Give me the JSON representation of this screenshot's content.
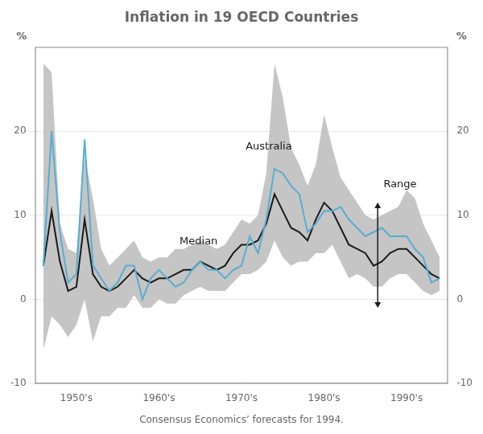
{
  "chart_data": {
    "type": "line",
    "title": "Inflation in 19 OECD Countries",
    "subtitle": "Consensus Economics’ forecasts for 1994.",
    "x": [
      1946,
      1947,
      1948,
      1949,
      1950,
      1951,
      1952,
      1953,
      1954,
      1955,
      1956,
      1957,
      1958,
      1959,
      1960,
      1961,
      1962,
      1963,
      1964,
      1965,
      1966,
      1967,
      1968,
      1969,
      1970,
      1971,
      1972,
      1973,
      1974,
      1975,
      1976,
      1977,
      1978,
      1979,
      1980,
      1981,
      1982,
      1983,
      1984,
      1985,
      1986,
      1987,
      1988,
      1989,
      1990,
      1991,
      1992,
      1993,
      1994
    ],
    "series": [
      {
        "name": "Range",
        "type": "range",
        "color": "#c5c5c5",
        "lower": [
          -6.0,
          -2.0,
          -3.0,
          -4.5,
          -3.0,
          0.0,
          -5.0,
          -2.0,
          -2.0,
          -1.0,
          -1.0,
          0.5,
          -1.0,
          -1.0,
          0.0,
          -0.5,
          -0.5,
          0.5,
          1.0,
          1.5,
          1.0,
          1.0,
          1.0,
          2.0,
          3.0,
          3.0,
          3.5,
          4.5,
          7.0,
          5.0,
          4.0,
          4.5,
          4.5,
          5.5,
          5.5,
          6.5,
          4.5,
          2.5,
          3.0,
          2.5,
          1.5,
          1.5,
          2.5,
          3.0,
          3.0,
          2.0,
          1.0,
          0.5,
          1.0
        ],
        "upper": [
          28.0,
          27.0,
          9.0,
          6.0,
          5.5,
          17.0,
          12.0,
          6.0,
          4.0,
          5.0,
          6.0,
          7.0,
          5.0,
          4.5,
          5.0,
          5.0,
          6.0,
          6.0,
          6.5,
          7.0,
          6.5,
          6.0,
          6.5,
          8.0,
          9.5,
          9.0,
          10.0,
          15.0,
          28.0,
          24.0,
          18.0,
          16.0,
          13.5,
          16.0,
          22.0,
          18.0,
          14.5,
          13.0,
          11.5,
          10.0,
          9.5,
          10.0,
          10.5,
          11.0,
          13.0,
          12.0,
          9.0,
          7.0,
          5.0
        ]
      },
      {
        "name": "Median",
        "type": "line",
        "color": "#1a1a1a",
        "values": [
          4.0,
          10.5,
          4.5,
          1.0,
          1.5,
          9.5,
          3.0,
          1.5,
          1.0,
          1.5,
          2.5,
          3.5,
          2.5,
          2.0,
          2.5,
          2.5,
          3.0,
          3.5,
          3.5,
          4.5,
          4.0,
          3.5,
          4.0,
          5.5,
          6.5,
          6.5,
          7.0,
          9.0,
          12.5,
          10.5,
          8.5,
          8.0,
          7.0,
          9.5,
          11.5,
          10.5,
          8.5,
          6.5,
          6.0,
          5.5,
          4.0,
          4.5,
          5.5,
          6.0,
          6.0,
          5.0,
          4.0,
          3.0,
          2.5
        ]
      },
      {
        "name": "Australia",
        "type": "line",
        "color": "#5aacce",
        "values": [
          4.0,
          20.0,
          8.0,
          2.0,
          3.0,
          19.0,
          4.0,
          2.5,
          1.0,
          2.0,
          4.0,
          4.0,
          0.0,
          2.5,
          3.5,
          2.5,
          1.5,
          2.0,
          3.5,
          4.5,
          3.5,
          3.5,
          2.5,
          3.5,
          4.0,
          7.5,
          5.5,
          9.5,
          15.5,
          15.0,
          13.5,
          12.5,
          8.0,
          9.0,
          10.5,
          10.5,
          11.0,
          9.5,
          8.5,
          7.5,
          8.0,
          8.5,
          7.5,
          7.5,
          7.5,
          6.0,
          5.0,
          2.0,
          2.5
        ]
      }
    ],
    "xlim": [
      1945,
      1995
    ],
    "xticks": [
      {
        "value": 1950,
        "label": "1950's"
      },
      {
        "value": 1960,
        "label": "1960's"
      },
      {
        "value": 1970,
        "label": "1970's"
      },
      {
        "value": 1980,
        "label": "1980's"
      },
      {
        "value": 1990,
        "label": "1990's"
      }
    ],
    "ylim": [
      -10,
      30
    ],
    "yticks": [
      -10,
      0,
      10,
      20
    ],
    "y2lim": [
      -10,
      30
    ],
    "y2ticks": [
      -10,
      0,
      10,
      20
    ],
    "ylabel": "%",
    "y2label": "%",
    "grid": true,
    "annotations": [
      {
        "text": "Australia",
        "x": 1970.5,
        "y": 17.5
      },
      {
        "text": "Median",
        "x": 1962.5,
        "y": 6.2
      },
      {
        "text": "Range",
        "x": 1987.2,
        "y": 13.0,
        "arrow": {
          "x": 1986.5,
          "from": 11.5,
          "to": -1.0
        }
      }
    ]
  }
}
